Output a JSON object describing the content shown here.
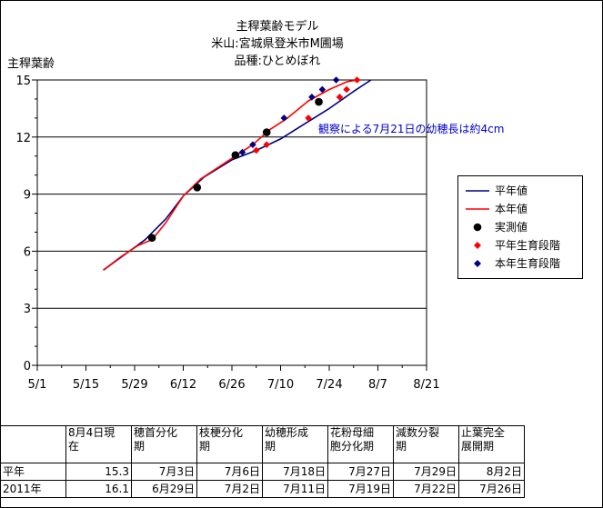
{
  "chart_data": {
    "type": "line",
    "title": [
      "主稈葉齢モデル",
      "米山:宮城県登米市M圃場",
      "品種:ひとめぼれ"
    ],
    "ylabel": "主稈葉齢",
    "ylim": [
      0,
      15
    ],
    "yticks": [
      0,
      3,
      6,
      9,
      12,
      15
    ],
    "x_tick_labels": [
      "5/1",
      "5/15",
      "5/29",
      "6/12",
      "6/26",
      "7/10",
      "7/24",
      "8/7",
      "8/21"
    ],
    "grid": "horizontal",
    "legend_position": "right",
    "annotation": "観察による7月21日の幼穂長は約4cm",
    "series": [
      {
        "name": "平年値",
        "kind": "line",
        "color": "#000080",
        "points": [
          [
            19,
            5.0
          ],
          [
            25,
            5.8
          ],
          [
            31,
            6.6
          ],
          [
            37,
            7.7
          ],
          [
            42,
            8.9
          ],
          [
            48,
            9.9
          ],
          [
            56,
            10.8
          ],
          [
            63,
            11.3
          ],
          [
            70,
            11.9
          ],
          [
            77,
            12.7
          ],
          [
            84,
            13.5
          ],
          [
            91,
            14.4
          ],
          [
            96,
            15.0
          ]
        ]
      },
      {
        "name": "本年値",
        "kind": "line",
        "color": "#ff0000",
        "points": [
          [
            19,
            5.0
          ],
          [
            24,
            5.7
          ],
          [
            29,
            6.3
          ],
          [
            33,
            6.6
          ],
          [
            37,
            7.5
          ],
          [
            42,
            8.9
          ],
          [
            47,
            9.8
          ],
          [
            52,
            10.4
          ],
          [
            57,
            11.0
          ],
          [
            62,
            11.6
          ],
          [
            67,
            12.4
          ],
          [
            72,
            13.0
          ],
          [
            78,
            13.9
          ],
          [
            84,
            14.5
          ],
          [
            89,
            14.9
          ],
          [
            92,
            15.0
          ]
        ]
      },
      {
        "name": "実測値",
        "kind": "marker",
        "color": "#000000",
        "points": [
          [
            33,
            6.7
          ],
          [
            46,
            9.35
          ],
          [
            57,
            11.05
          ],
          [
            66,
            12.25
          ],
          [
            81,
            13.85
          ]
        ]
      },
      {
        "name": "平年生育段階",
        "kind": "marker",
        "color": "#ff0000",
        "points": [
          [
            63,
            11.3
          ],
          [
            66,
            11.6
          ],
          [
            78,
            13.0
          ],
          [
            87,
            14.1
          ],
          [
            89,
            14.5
          ],
          [
            92,
            15.0
          ]
        ]
      },
      {
        "name": "本年生育段階",
        "kind": "marker",
        "color": "#000080",
        "points": [
          [
            59,
            11.2
          ],
          [
            62,
            11.6
          ],
          [
            71,
            13.0
          ],
          [
            79,
            14.1
          ],
          [
            82,
            14.5
          ],
          [
            86,
            15.0
          ]
        ]
      }
    ]
  },
  "table": {
    "headers": [
      "",
      "8月4日現\n在",
      "穂首分化\n期",
      "枝梗分化\n期",
      "幼穂形成\n期",
      "花粉母細\n胞分化期",
      "減数分裂\n期",
      "止葉完全\n展開期"
    ],
    "rows": [
      [
        "平年",
        "15.3",
        "7月3日",
        "7月6日",
        "7月18日",
        "7月27日",
        "7月29日",
        "8月2日"
      ],
      [
        "2011年",
        "16.1",
        "6月29日",
        "7月2日",
        "7月11日",
        "7月19日",
        "7月22日",
        "7月26日"
      ]
    ]
  }
}
